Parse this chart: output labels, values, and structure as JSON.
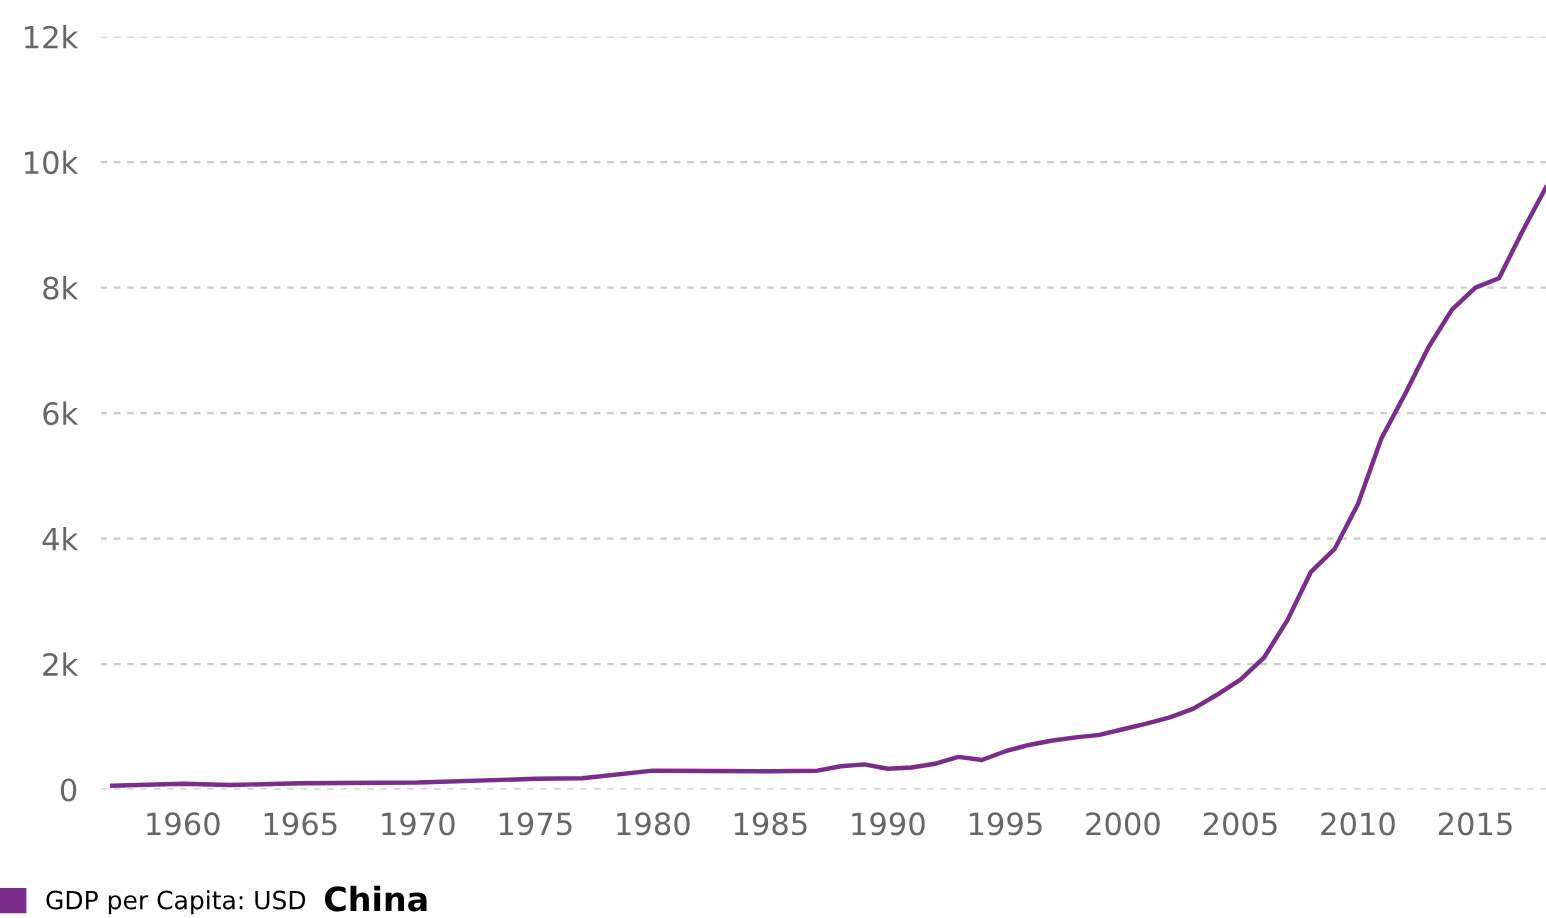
{
  "chart_data": {
    "type": "line",
    "x": [
      1957,
      1960,
      1962,
      1965,
      1970,
      1975,
      1977,
      1980,
      1985,
      1987,
      1988,
      1989,
      1990,
      1991,
      1992,
      1993,
      1994,
      1995,
      1996,
      1997,
      1998,
      1999,
      2000,
      2001,
      2002,
      2003,
      2004,
      2005,
      2006,
      2007,
      2008,
      2009,
      2010,
      2011,
      2012,
      2013,
      2014,
      2015,
      2016,
      2017,
      2018
    ],
    "series": [
      {
        "name": "GDP per Capita: USD",
        "color": "#7b2d8b",
        "values": [
          60,
          90,
          70,
          100,
          110,
          170,
          180,
          300,
          290,
          300,
          370,
          400,
          330,
          350,
          410,
          520,
          470,
          610,
          710,
          780,
          830,
          870,
          960,
          1050,
          1150,
          1290,
          1510,
          1750,
          2100,
          2700,
          3470,
          3830,
          4550,
          5600,
          6300,
          7050,
          7650,
          8000,
          8150,
          8900,
          9600
        ]
      }
    ],
    "xlim": [
      1956.5,
      2018
    ],
    "xticks": [
      1960,
      1965,
      1970,
      1975,
      1980,
      1985,
      1990,
      1995,
      2000,
      2005,
      2010,
      2015
    ],
    "ylim": [
      0,
      12000
    ],
    "yticks": [
      {
        "value": 0,
        "label": "0"
      },
      {
        "value": 2000,
        "label": "2k"
      },
      {
        "value": 4000,
        "label": "4k"
      },
      {
        "value": 6000,
        "label": "6k"
      },
      {
        "value": 8000,
        "label": "8k"
      },
      {
        "value": 10000,
        "label": "10k"
      },
      {
        "value": 12000,
        "label": "12k"
      }
    ],
    "grid": "y",
    "legend": "bottom",
    "legend_title": "China",
    "line_style": "solid",
    "marker": "none"
  }
}
